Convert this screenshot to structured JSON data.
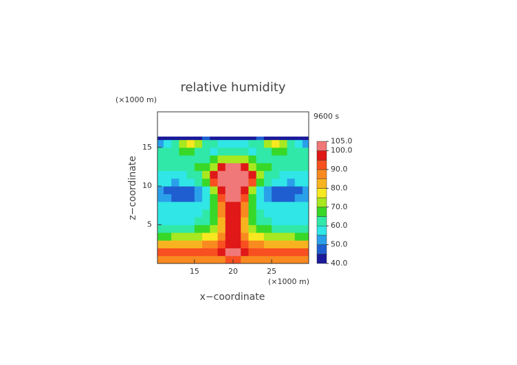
{
  "chart_data": {
    "type": "heatmap",
    "title": "relative humidity",
    "time_label": "9600 s",
    "x_label": "x−coordinate",
    "y_label": "z−coordinate",
    "x_unit": "(×1000 m)",
    "y_unit": "(×1000 m)",
    "xlim": [
      10.2,
      29.8
    ],
    "ylim": [
      0,
      19.6
    ],
    "xticks": [
      15,
      20,
      25
    ],
    "yticks": [
      5,
      10,
      15
    ],
    "x_edges": [
      10,
      11,
      12,
      13,
      14,
      15,
      16,
      17,
      18,
      19,
      20,
      21,
      22,
      23,
      24,
      25,
      26,
      27,
      28,
      29,
      30
    ],
    "y_edges": [
      0,
      1,
      2,
      3,
      4,
      5,
      6,
      7,
      8,
      9,
      10,
      11,
      12,
      13,
      14,
      15,
      16,
      16.4
    ],
    "values": [
      [
        86,
        86,
        86,
        86,
        86,
        86,
        86,
        87,
        88,
        90,
        90,
        88,
        87,
        86,
        86,
        86,
        86,
        86,
        86,
        86
      ],
      [
        92,
        92,
        92,
        92,
        92,
        92,
        93,
        94,
        96,
        101,
        101,
        96,
        94,
        93,
        92,
        92,
        92,
        92,
        92,
        92
      ],
      [
        82,
        82,
        82,
        83,
        83,
        84,
        85,
        86,
        90,
        98,
        98,
        90,
        86,
        85,
        84,
        83,
        83,
        82,
        82,
        82
      ],
      [
        68,
        68,
        70,
        72,
        73,
        74,
        75,
        76,
        85,
        98,
        98,
        85,
        76,
        75,
        74,
        73,
        72,
        70,
        68,
        68
      ],
      [
        62,
        62,
        63,
        64,
        64,
        65,
        66,
        70,
        82,
        98,
        98,
        82,
        70,
        66,
        65,
        64,
        64,
        63,
        62,
        62
      ],
      [
        57,
        57,
        58,
        58,
        59,
        60,
        61,
        66,
        82,
        97,
        97,
        82,
        66,
        61,
        60,
        59,
        58,
        58,
        57,
        57
      ],
      [
        56,
        56,
        56,
        57,
        57,
        58,
        60,
        66,
        85,
        98,
        98,
        85,
        66,
        60,
        58,
        57,
        57,
        56,
        56,
        56
      ],
      [
        56,
        56,
        55,
        55,
        56,
        57,
        58,
        66,
        86,
        99,
        99,
        86,
        66,
        58,
        57,
        56,
        55,
        55,
        56,
        56
      ],
      [
        52,
        50,
        49,
        48,
        49,
        52,
        56,
        68,
        90,
        100,
        100,
        90,
        68,
        56,
        52,
        49,
        48,
        49,
        50,
        52
      ],
      [
        52,
        49,
        48,
        47,
        49,
        52,
        57,
        70,
        96,
        101,
        101,
        96,
        70,
        57,
        52,
        49,
        47,
        48,
        49,
        52
      ],
      [
        56,
        55,
        54,
        55,
        57,
        60,
        68,
        93,
        102,
        102,
        102,
        102,
        93,
        68,
        60,
        57,
        55,
        54,
        55,
        56
      ],
      [
        58,
        58,
        58,
        58,
        60,
        62,
        70,
        96,
        102,
        102,
        102,
        102,
        96,
        70,
        62,
        60,
        58,
        58,
        58,
        58
      ],
      [
        62,
        62,
        63,
        64,
        64,
        65,
        66,
        72,
        96,
        101,
        101,
        96,
        72,
        66,
        65,
        64,
        64,
        63,
        62,
        62
      ],
      [
        63,
        63,
        64,
        64,
        63,
        62,
        63,
        66,
        70,
        74,
        74,
        70,
        66,
        63,
        62,
        63,
        64,
        64,
        63,
        63
      ],
      [
        62,
        62,
        64,
        66,
        68,
        64,
        60,
        58,
        60,
        62,
        62,
        60,
        58,
        60,
        64,
        68,
        66,
        64,
        62,
        62
      ],
      [
        50,
        55,
        62,
        72,
        76,
        72,
        64,
        60,
        57,
        55,
        55,
        57,
        60,
        64,
        72,
        76,
        72,
        62,
        55,
        50
      ],
      [
        44,
        44,
        44,
        44,
        44,
        44,
        45,
        44,
        43,
        42,
        42,
        43,
        44,
        45,
        44,
        44,
        44,
        44,
        44,
        44
      ]
    ],
    "colorbar": {
      "bounds": [
        40,
        45,
        50,
        55,
        60,
        65,
        70,
        75,
        80,
        85,
        90,
        95,
        100,
        105
      ],
      "colors": [
        "#1a1a9a",
        "#1e5ed0",
        "#2aa0ea",
        "#30e6e6",
        "#30e8a8",
        "#38d828",
        "#a8e820",
        "#f8e820",
        "#f8b420",
        "#f88a20",
        "#f85020",
        "#e01818",
        "#f07878"
      ],
      "ticks": [
        {
          "value": 40,
          "label": "40.0"
        },
        {
          "value": 50,
          "label": "50.0"
        },
        {
          "value": 60,
          "label": "60.0"
        },
        {
          "value": 70,
          "label": "70.0"
        },
        {
          "value": 80,
          "label": "80.0"
        },
        {
          "value": 90,
          "label": "90.0"
        },
        {
          "value": 100,
          "label": "100.0"
        },
        {
          "value": 105,
          "label": "105.0"
        }
      ]
    }
  }
}
